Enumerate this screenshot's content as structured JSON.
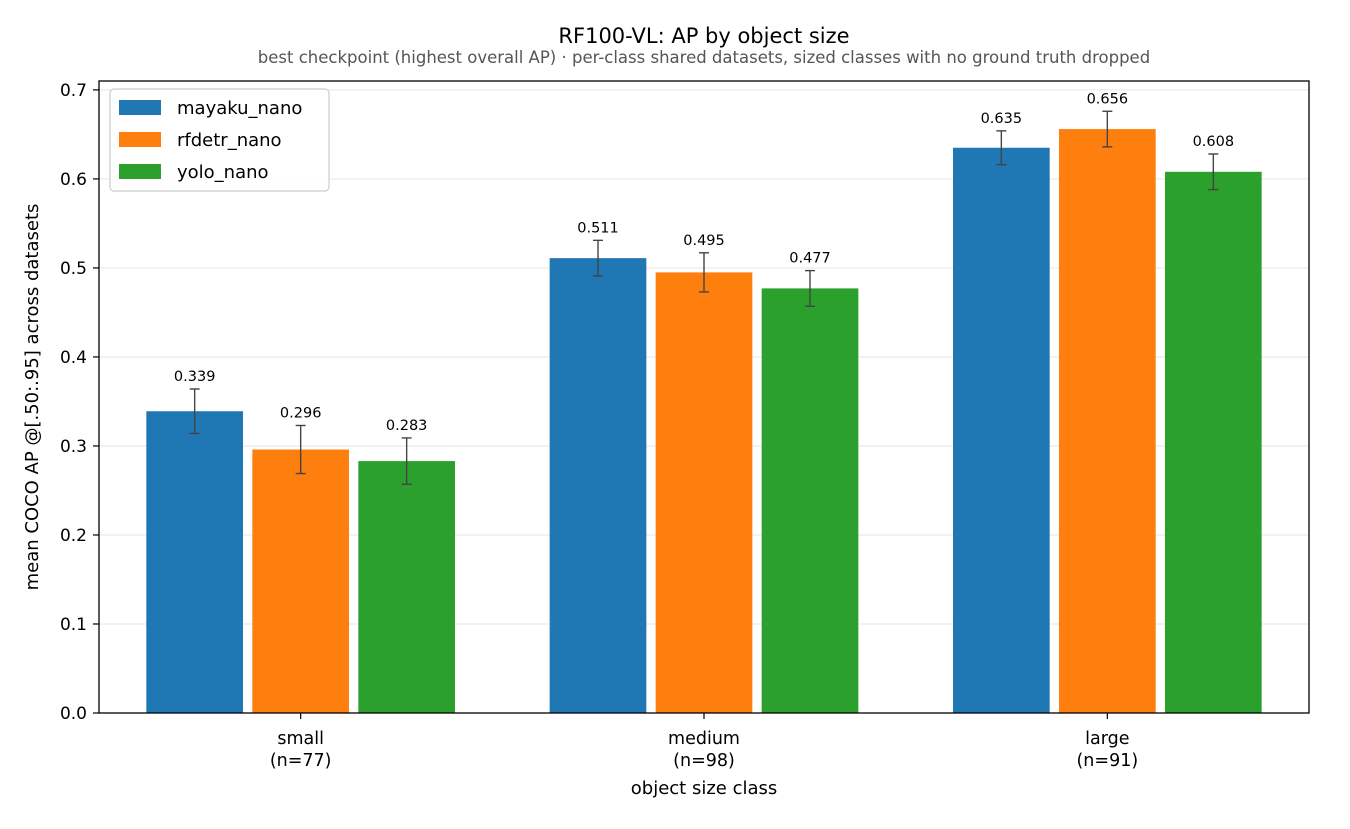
{
  "chart_data": {
    "type": "bar",
    "title": "RF100-VL: AP by object size",
    "subtitle": "best checkpoint (highest overall AP) · per-class shared datasets, sized classes with no ground truth dropped",
    "xlabel": "object size class",
    "ylabel": "mean COCO AP @[.50:.95] across datasets",
    "ylim": [
      0,
      0.71
    ],
    "yticks": [
      "0.0",
      "0.1",
      "0.2",
      "0.3",
      "0.4",
      "0.5",
      "0.6",
      "0.7"
    ],
    "grid": "y",
    "legend_position": "top-left",
    "categories": [
      {
        "name": "small",
        "count": "(n=77)"
      },
      {
        "name": "medium",
        "count": "(n=98)"
      },
      {
        "name": "large",
        "count": "(n=91)"
      }
    ],
    "series": [
      {
        "name": "mayaku_nano",
        "color": "#1f77b4",
        "values": [
          0.339,
          0.511,
          0.635
        ],
        "labels": [
          "0.339",
          "0.511",
          "0.635"
        ],
        "errors": [
          0.025,
          0.02,
          0.019
        ]
      },
      {
        "name": "rfdetr_nano",
        "color": "#ff7f0e",
        "values": [
          0.296,
          0.495,
          0.656
        ],
        "labels": [
          "0.296",
          "0.495",
          "0.656"
        ],
        "errors": [
          0.027,
          0.022,
          0.02
        ]
      },
      {
        "name": "yolo_nano",
        "color": "#2ca02c",
        "values": [
          0.283,
          0.477,
          0.608
        ],
        "labels": [
          "0.283",
          "0.477",
          "0.608"
        ],
        "errors": [
          0.026,
          0.02,
          0.02
        ]
      }
    ]
  }
}
